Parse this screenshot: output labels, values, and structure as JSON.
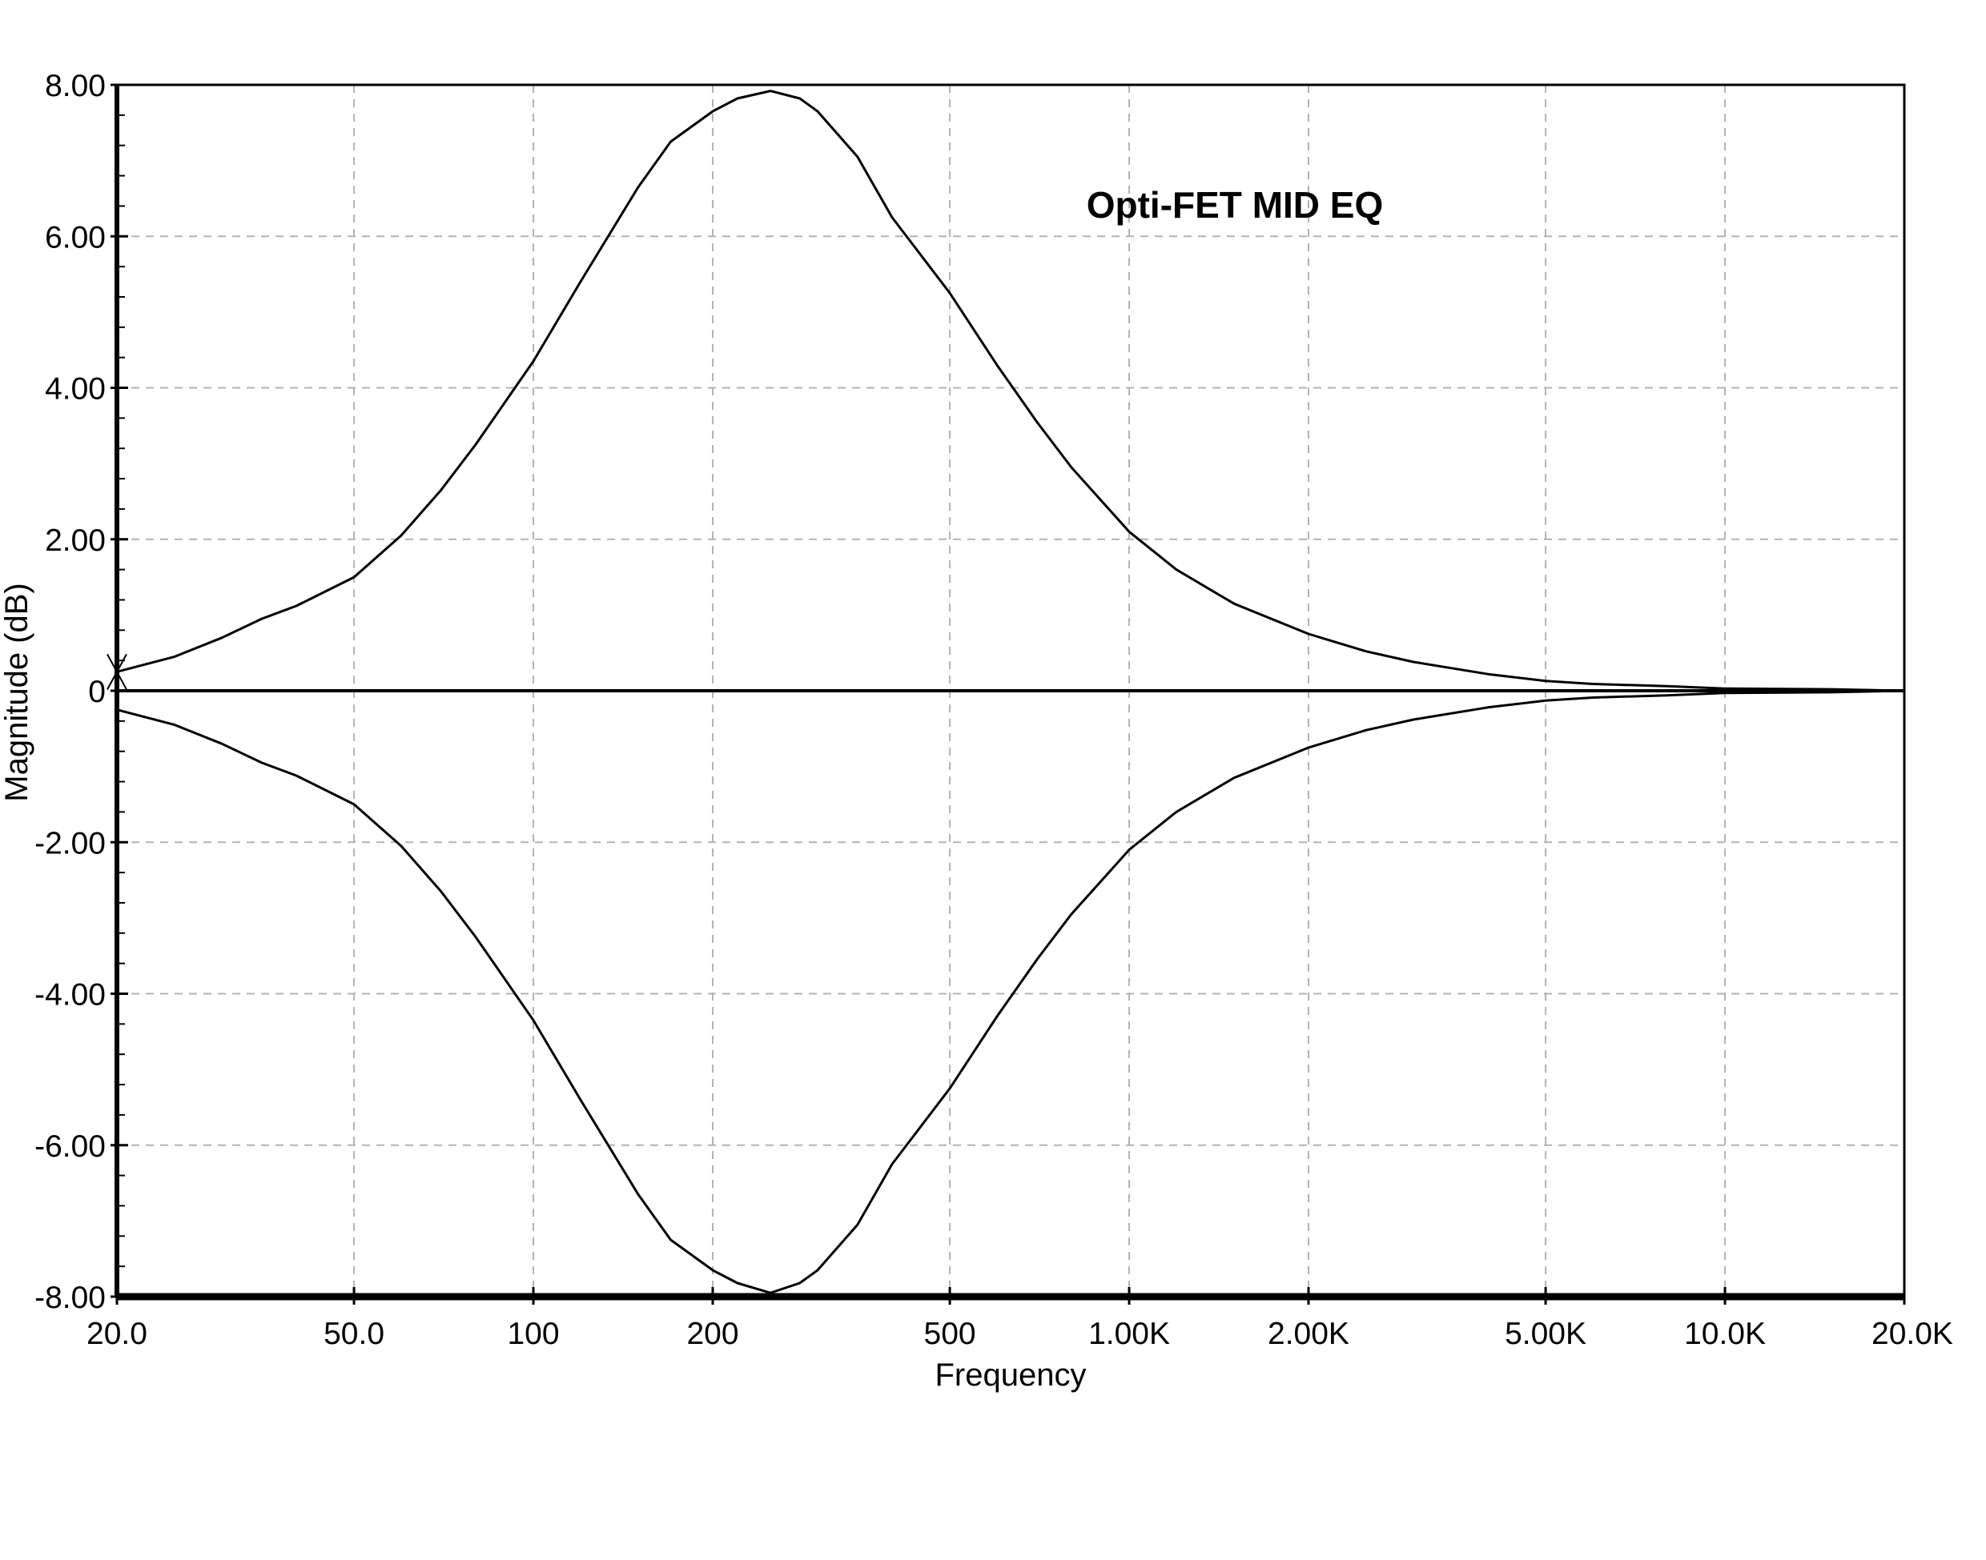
{
  "chart_data": {
    "type": "line",
    "title": "Opti-FET MID EQ",
    "xlabel": "Frequency",
    "ylabel": "Magnitude  (dB)",
    "x_scale": "log",
    "xlim": [
      20,
      20000
    ],
    "ylim": [
      -8,
      8
    ],
    "grid": true,
    "x_ticks": [
      {
        "value": 20,
        "label": "20.0"
      },
      {
        "value": 50,
        "label": "50.0"
      },
      {
        "value": 100,
        "label": "100"
      },
      {
        "value": 200,
        "label": "200"
      },
      {
        "value": 500,
        "label": "500"
      },
      {
        "value": 1000,
        "label": "1.00K"
      },
      {
        "value": 2000,
        "label": "2.00K"
      },
      {
        "value": 5000,
        "label": "5.00K"
      },
      {
        "value": 10000,
        "label": "10.0K"
      },
      {
        "value": 20000,
        "label": "20.0K"
      }
    ],
    "y_ticks": [
      {
        "value": 8,
        "label": "8.00"
      },
      {
        "value": 6,
        "label": "6.00"
      },
      {
        "value": 4,
        "label": "4.00"
      },
      {
        "value": 2,
        "label": "2.00"
      },
      {
        "value": 0,
        "label": "0"
      },
      {
        "value": -2,
        "label": "-2.00"
      },
      {
        "value": -4,
        "label": "-4.00"
      },
      {
        "value": -6,
        "label": "-6.00"
      },
      {
        "value": -8,
        "label": "-8.00"
      }
    ],
    "x": [
      20,
      25,
      30,
      35,
      40,
      50,
      60,
      70,
      80,
      100,
      120,
      150,
      170,
      200,
      220,
      250,
      280,
      300,
      350,
      400,
      500,
      600,
      700,
      800,
      1000,
      1200,
      1500,
      2000,
      2500,
      3000,
      4000,
      5000,
      6000,
      8000,
      10000,
      15000,
      20000
    ],
    "series": [
      {
        "values": [
          0.25,
          0.45,
          0.7,
          0.95,
          1.12,
          1.5,
          2.05,
          2.65,
          3.25,
          4.35,
          5.4,
          6.65,
          7.25,
          7.65,
          7.82,
          7.92,
          7.82,
          7.65,
          7.05,
          6.25,
          5.25,
          4.3,
          3.55,
          2.95,
          2.1,
          1.6,
          1.15,
          0.75,
          0.52,
          0.38,
          0.22,
          0.13,
          0.09,
          0.06,
          0.03,
          0.02,
          0.0
        ]
      },
      {
        "values": [
          -0.25,
          -0.45,
          -0.7,
          -0.95,
          -1.12,
          -1.5,
          -2.05,
          -2.65,
          -3.25,
          -4.35,
          -5.4,
          -6.65,
          -7.25,
          -7.65,
          -7.82,
          -7.95,
          -7.82,
          -7.65,
          -7.05,
          -6.25,
          -5.25,
          -4.3,
          -3.55,
          -2.95,
          -2.1,
          -1.6,
          -1.15,
          -0.75,
          -0.52,
          -0.38,
          -0.22,
          -0.13,
          -0.09,
          -0.06,
          -0.03,
          -0.02,
          0.0
        ]
      }
    ]
  }
}
